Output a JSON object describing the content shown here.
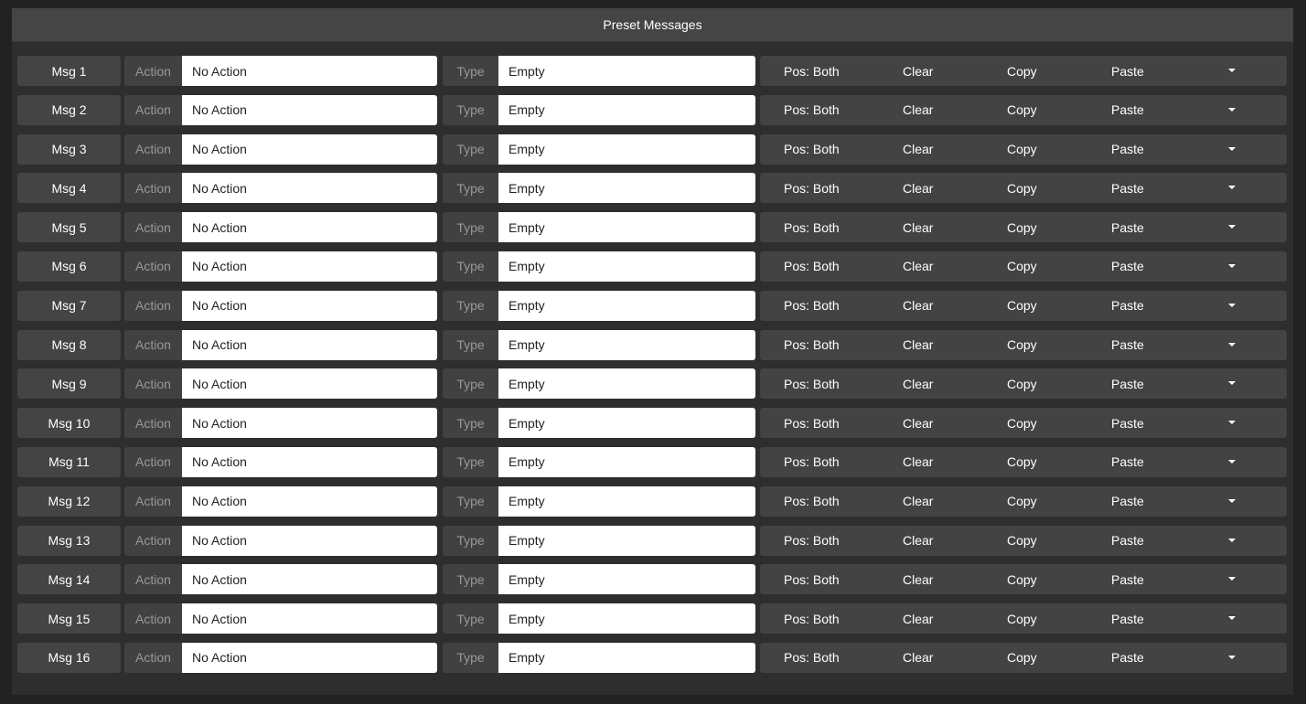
{
  "header": {
    "title": "Preset Messages"
  },
  "labels": {
    "action": "Action",
    "type": "Type",
    "pos": "Pos: Both",
    "clear": "Clear",
    "copy": "Copy",
    "paste": "Paste"
  },
  "rows": [
    {
      "name": "Msg 1",
      "action": "No Action",
      "type": "Empty"
    },
    {
      "name": "Msg 2",
      "action": "No Action",
      "type": "Empty"
    },
    {
      "name": "Msg 3",
      "action": "No Action",
      "type": "Empty"
    },
    {
      "name": "Msg 4",
      "action": "No Action",
      "type": "Empty"
    },
    {
      "name": "Msg 5",
      "action": "No Action",
      "type": "Empty"
    },
    {
      "name": "Msg 6",
      "action": "No Action",
      "type": "Empty"
    },
    {
      "name": "Msg 7",
      "action": "No Action",
      "type": "Empty"
    },
    {
      "name": "Msg 8",
      "action": "No Action",
      "type": "Empty"
    },
    {
      "name": "Msg 9",
      "action": "No Action",
      "type": "Empty"
    },
    {
      "name": "Msg 10",
      "action": "No Action",
      "type": "Empty"
    },
    {
      "name": "Msg 11",
      "action": "No Action",
      "type": "Empty"
    },
    {
      "name": "Msg 12",
      "action": "No Action",
      "type": "Empty"
    },
    {
      "name": "Msg 13",
      "action": "No Action",
      "type": "Empty"
    },
    {
      "name": "Msg 14",
      "action": "No Action",
      "type": "Empty"
    },
    {
      "name": "Msg 15",
      "action": "No Action",
      "type": "Empty"
    },
    {
      "name": "Msg 16",
      "action": "No Action",
      "type": "Empty"
    }
  ]
}
